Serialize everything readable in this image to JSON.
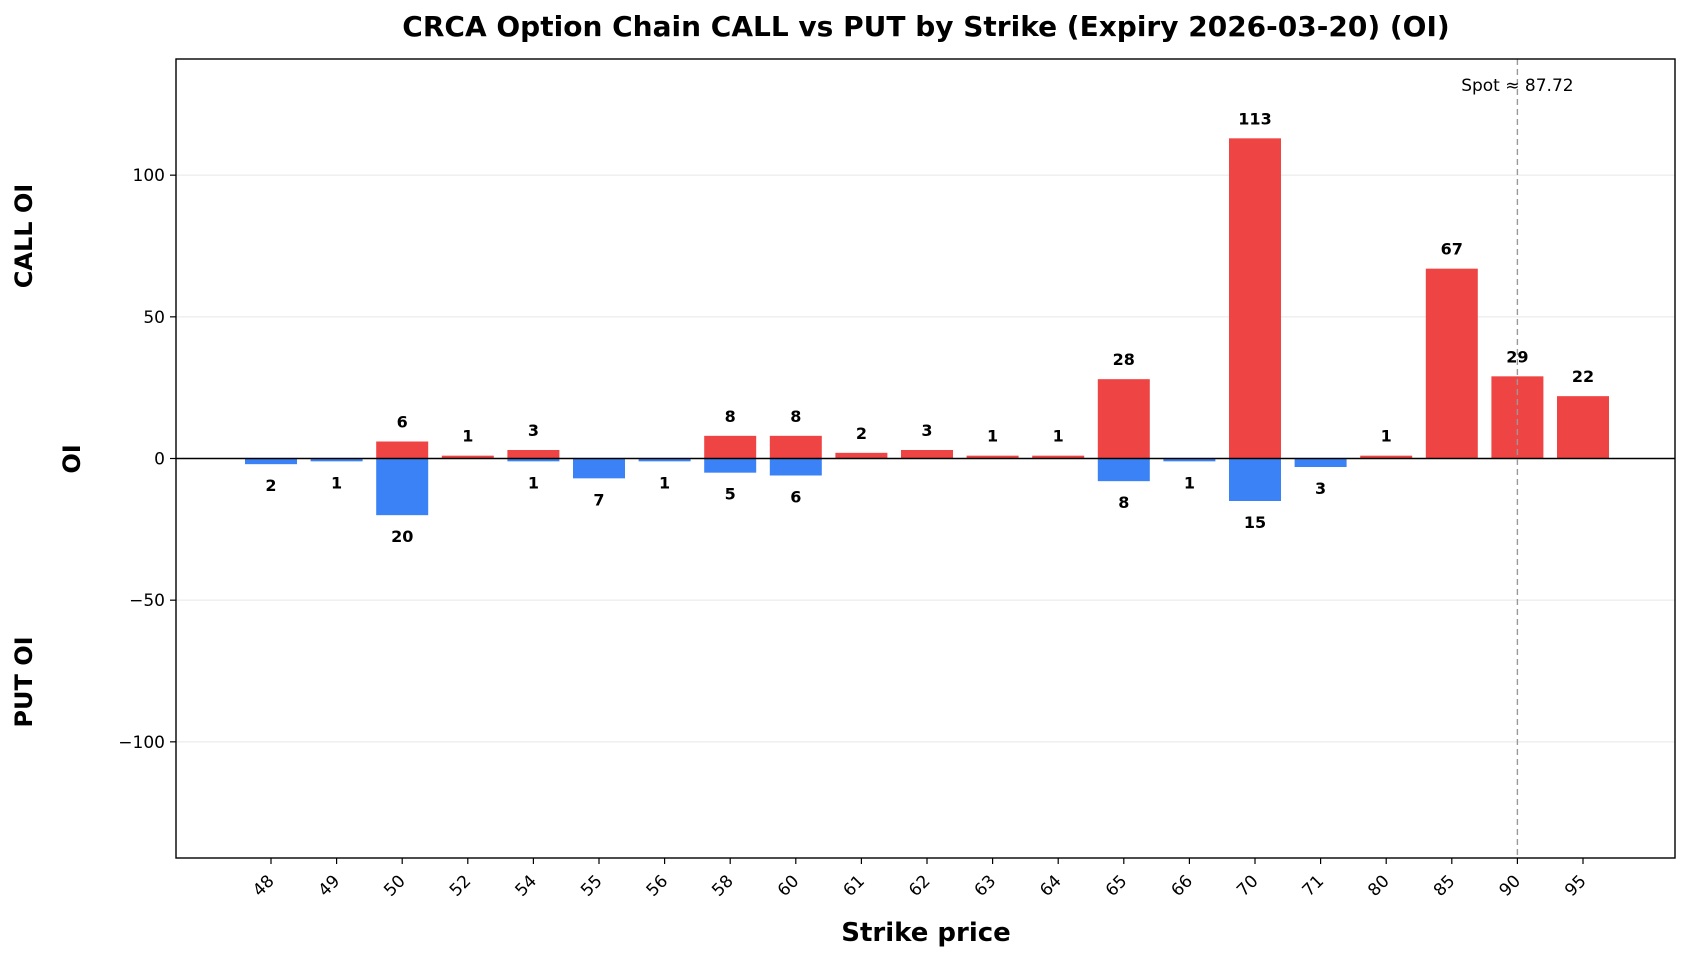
{
  "chart_data": {
    "type": "bar",
    "title": "CRCA Option Chain CALL vs PUT by Strike (Expiry 2026-03-20) (OI)",
    "xlabel": "Strike price",
    "ylabel": "OI",
    "ylabel_top": "CALL OI",
    "ylabel_bottom": "PUT OI",
    "categories": [
      "48",
      "49",
      "50",
      "52",
      "54",
      "55",
      "56",
      "58",
      "60",
      "61",
      "62",
      "63",
      "64",
      "65",
      "66",
      "70",
      "71",
      "80",
      "85",
      "90",
      "95"
    ],
    "series": [
      {
        "name": "CALL OI",
        "color": "#ef4444",
        "direction": "up",
        "values": [
          0,
          0,
          6,
          1,
          3,
          0,
          0,
          8,
          8,
          2,
          3,
          1,
          1,
          28,
          0,
          113,
          0,
          1,
          67,
          29,
          22
        ]
      },
      {
        "name": "PUT OI",
        "color": "#3b82f6",
        "direction": "down",
        "values": [
          2,
          1,
          20,
          0,
          1,
          7,
          1,
          5,
          6,
          0,
          0,
          0,
          0,
          8,
          1,
          15,
          3,
          0,
          0,
          0,
          0
        ]
      }
    ],
    "ylim": [
      -141,
      141
    ],
    "yticks": [
      -100,
      -50,
      0,
      50,
      100
    ],
    "ytick_labels": [
      "−100",
      "−50",
      "0",
      "50",
      "100"
    ],
    "grid": "horizontal",
    "spot": {
      "label": "Spot ≈ 87.72",
      "value": 87.72,
      "drawn_at_category": "90"
    }
  }
}
